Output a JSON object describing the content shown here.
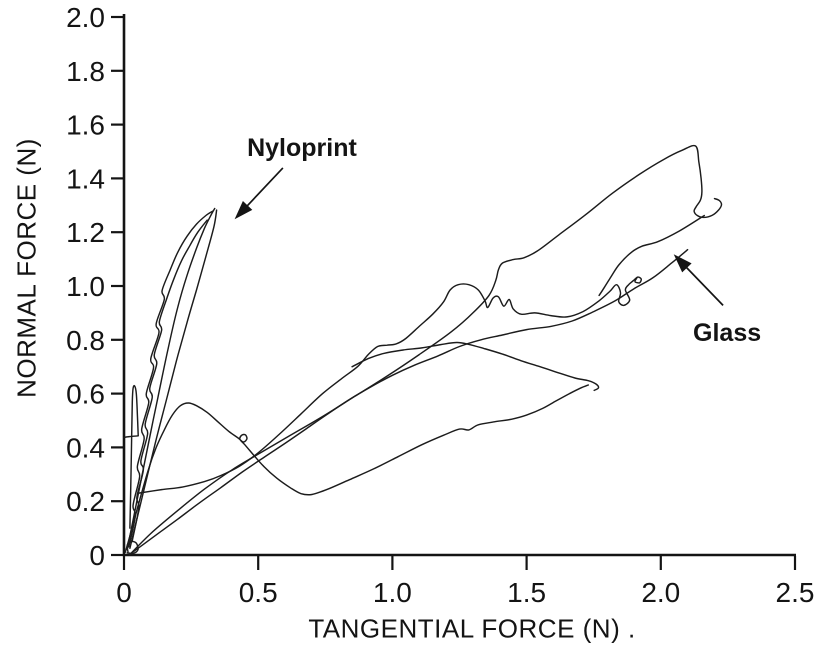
{
  "figure": {
    "background": "#ffffff",
    "line_color": "#1c1c1c",
    "axis_color": "#141414"
  },
  "chart_data": {
    "type": "line",
    "title": "",
    "xlabel": "TANGENTIAL FORCE (N) .",
    "ylabel": "NORMAL FORCE (N)",
    "xlim": [
      0,
      2.5
    ],
    "ylim": [
      0,
      2.0
    ],
    "grid": false,
    "legend_position": "none",
    "x_ticks": [
      {
        "value": 0.0,
        "label": "0"
      },
      {
        "value": 0.5,
        "label": "0.5"
      },
      {
        "value": 1.0,
        "label": "1.0"
      },
      {
        "value": 1.5,
        "label": "1.5"
      },
      {
        "value": 2.0,
        "label": "2.0"
      },
      {
        "value": 2.5,
        "label": "2.5"
      }
    ],
    "y_ticks": [
      {
        "value": 0.0,
        "label": "0"
      },
      {
        "value": 0.2,
        "label": "0.2"
      },
      {
        "value": 0.4,
        "label": "0.4"
      },
      {
        "value": 0.6,
        "label": "0.6"
      },
      {
        "value": 0.8,
        "label": "0.8"
      },
      {
        "value": 1.0,
        "label": "1.0"
      },
      {
        "value": 1.2,
        "label": "1.2"
      },
      {
        "value": 1.4,
        "label": "1.4"
      },
      {
        "value": 1.6,
        "label": "1.6"
      },
      {
        "value": 1.8,
        "label": "1.8"
      },
      {
        "value": 2.0,
        "label": "2.0"
      }
    ],
    "annotations": [
      {
        "label": "Nyloprint",
        "label_pos": [
          0.663,
          1.517
        ],
        "arrow_from": [
          0.592,
          1.439
        ],
        "arrow_to": [
          0.412,
          1.248
        ]
      },
      {
        "label": "Glass",
        "label_pos": [
          2.247,
          0.829
        ],
        "arrow_from": [
          2.232,
          0.928
        ],
        "arrow_to": [
          2.048,
          1.118
        ]
      }
    ],
    "series": [
      {
        "name": "glass-load-peak-drop",
        "group": "glass",
        "points": [
          [
            0.02,
            0.0
          ],
          [
            0.1,
            0.08
          ],
          [
            0.2,
            0.165
          ],
          [
            0.3,
            0.245
          ],
          [
            0.4,
            0.315
          ],
          [
            0.5,
            0.375
          ],
          [
            0.62,
            0.445
          ],
          [
            0.74,
            0.515
          ],
          [
            0.86,
            0.59
          ],
          [
            0.98,
            0.665
          ],
          [
            1.1,
            0.745
          ],
          [
            1.22,
            0.83
          ],
          [
            1.3,
            0.9
          ],
          [
            1.36,
            0.965
          ],
          [
            1.385,
            1.02
          ],
          [
            1.395,
            1.06
          ],
          [
            1.41,
            1.085
          ],
          [
            1.45,
            1.098
          ],
          [
            1.49,
            1.105
          ],
          [
            1.54,
            1.13
          ],
          [
            1.62,
            1.19
          ],
          [
            1.72,
            1.265
          ],
          [
            1.82,
            1.345
          ],
          [
            1.92,
            1.415
          ],
          [
            2.01,
            1.47
          ],
          [
            2.08,
            1.505
          ],
          [
            2.13,
            1.52
          ],
          [
            2.142,
            1.46
          ],
          [
            2.15,
            1.4
          ],
          [
            2.153,
            1.35
          ],
          [
            2.148,
            1.32
          ],
          [
            2.132,
            1.295
          ],
          [
            2.124,
            1.278
          ],
          [
            2.136,
            1.262
          ],
          [
            2.16,
            1.255
          ],
          [
            2.19,
            1.262
          ],
          [
            2.215,
            1.282
          ],
          [
            2.226,
            1.302
          ],
          [
            2.218,
            1.318
          ],
          [
            2.2,
            1.325
          ]
        ]
      },
      {
        "name": "glass-loop-inner-return",
        "group": "glass",
        "points": [
          [
            2.162,
            1.262
          ],
          [
            2.07,
            1.205
          ],
          [
            1.99,
            1.165
          ],
          [
            1.93,
            1.148
          ],
          [
            1.89,
            1.125
          ],
          [
            1.845,
            1.08
          ],
          [
            1.815,
            1.035
          ],
          [
            1.79,
            0.995
          ],
          [
            1.77,
            0.965
          ]
        ]
      },
      {
        "name": "glass-unload-diagonal",
        "group": "glass",
        "points": [
          [
            2.1,
            1.135
          ],
          [
            2.04,
            1.085
          ],
          [
            1.97,
            1.03
          ],
          [
            1.9,
            0.99
          ],
          [
            1.83,
            0.945
          ],
          [
            1.75,
            0.905
          ],
          [
            1.67,
            0.87
          ],
          [
            1.59,
            0.85
          ],
          [
            1.5,
            0.838
          ],
          [
            1.41,
            0.818
          ],
          [
            1.33,
            0.8
          ],
          [
            1.25,
            0.775
          ],
          [
            1.17,
            0.74
          ],
          [
            1.08,
            0.705
          ],
          [
            1.0,
            0.668
          ],
          [
            0.92,
            0.625
          ],
          [
            0.84,
            0.578
          ],
          [
            0.76,
            0.525
          ],
          [
            0.68,
            0.47
          ],
          [
            0.6,
            0.415
          ],
          [
            0.52,
            0.362
          ],
          [
            0.44,
            0.308
          ],
          [
            0.36,
            0.25
          ],
          [
            0.28,
            0.193
          ],
          [
            0.2,
            0.133
          ],
          [
            0.13,
            0.082
          ],
          [
            0.07,
            0.038
          ],
          [
            0.025,
            0.005
          ]
        ]
      },
      {
        "name": "glass-cycle2-load-wiggle",
        "group": "glass",
        "points": [
          [
            0.055,
            0.23
          ],
          [
            0.14,
            0.243
          ],
          [
            0.22,
            0.253
          ],
          [
            0.3,
            0.273
          ],
          [
            0.36,
            0.295
          ],
          [
            0.43,
            0.33
          ],
          [
            0.5,
            0.38
          ],
          [
            0.58,
            0.45
          ],
          [
            0.66,
            0.525
          ],
          [
            0.74,
            0.6
          ],
          [
            0.81,
            0.655
          ],
          [
            0.87,
            0.7
          ],
          [
            0.91,
            0.745
          ],
          [
            0.945,
            0.775
          ],
          [
            0.98,
            0.78
          ],
          [
            1.015,
            0.785
          ],
          [
            1.05,
            0.805
          ],
          [
            1.1,
            0.85
          ],
          [
            1.15,
            0.895
          ],
          [
            1.19,
            0.94
          ],
          [
            1.215,
            0.985
          ],
          [
            1.245,
            1.005
          ],
          [
            1.285,
            1.005
          ],
          [
            1.32,
            0.985
          ],
          [
            1.345,
            0.945
          ],
          [
            1.355,
            0.92
          ],
          [
            1.375,
            0.955
          ],
          [
            1.395,
            0.96
          ],
          [
            1.415,
            0.925
          ],
          [
            1.435,
            0.95
          ],
          [
            1.45,
            0.915
          ],
          [
            1.48,
            0.895
          ],
          [
            1.53,
            0.9
          ],
          [
            1.59,
            0.89
          ],
          [
            1.65,
            0.885
          ],
          [
            1.71,
            0.905
          ],
          [
            1.77,
            0.945
          ],
          [
            1.81,
            0.98
          ],
          [
            1.835,
            1.005
          ],
          [
            1.85,
            0.975
          ],
          [
            1.843,
            0.942
          ],
          [
            1.862,
            0.928
          ],
          [
            1.884,
            0.948
          ],
          [
            1.868,
            0.985
          ],
          [
            1.88,
            1.005
          ],
          [
            1.898,
            1.02
          ],
          [
            1.914,
            1.033
          ],
          [
            1.927,
            1.026
          ],
          [
            1.921,
            1.012
          ],
          [
            1.904,
            1.016
          ],
          [
            1.911,
            1.03
          ]
        ]
      },
      {
        "name": "glass-return-flat-top",
        "group": "glass",
        "points": [
          [
            0.85,
            0.7
          ],
          [
            0.91,
            0.73
          ],
          [
            0.97,
            0.75
          ],
          [
            1.04,
            0.762
          ],
          [
            1.11,
            0.77
          ],
          [
            1.18,
            0.782
          ],
          [
            1.24,
            0.79
          ],
          [
            1.285,
            0.783
          ],
          [
            1.34,
            0.768
          ],
          [
            1.41,
            0.747
          ],
          [
            1.48,
            0.722
          ],
          [
            1.55,
            0.7
          ],
          [
            1.62,
            0.677
          ],
          [
            1.68,
            0.658
          ],
          [
            1.73,
            0.648
          ],
          [
            1.758,
            0.636
          ],
          [
            1.768,
            0.622
          ],
          [
            1.752,
            0.612
          ]
        ]
      },
      {
        "name": "hill-loop-return",
        "group": "glass",
        "points": [
          [
            0.005,
            0.01
          ],
          [
            0.03,
            0.1
          ],
          [
            0.06,
            0.21
          ],
          [
            0.09,
            0.315
          ],
          [
            0.12,
            0.4
          ],
          [
            0.15,
            0.465
          ],
          [
            0.18,
            0.52
          ],
          [
            0.21,
            0.555
          ],
          [
            0.24,
            0.565
          ],
          [
            0.27,
            0.555
          ],
          [
            0.31,
            0.53
          ],
          [
            0.35,
            0.495
          ],
          [
            0.39,
            0.46
          ],
          [
            0.425,
            0.435
          ],
          [
            0.445,
            0.42
          ],
          [
            0.458,
            0.432
          ],
          [
            0.452,
            0.447
          ],
          [
            0.438,
            0.445
          ],
          [
            0.432,
            0.43
          ],
          [
            0.45,
            0.41
          ],
          [
            0.48,
            0.375
          ],
          [
            0.52,
            0.33
          ],
          [
            0.57,
            0.285
          ],
          [
            0.62,
            0.25
          ],
          [
            0.66,
            0.228
          ],
          [
            0.7,
            0.225
          ],
          [
            0.76,
            0.245
          ],
          [
            0.84,
            0.28
          ],
          [
            0.93,
            0.32
          ],
          [
            1.02,
            0.365
          ],
          [
            1.11,
            0.41
          ],
          [
            1.19,
            0.445
          ],
          [
            1.25,
            0.468
          ],
          [
            1.285,
            0.465
          ],
          [
            1.32,
            0.484
          ],
          [
            1.38,
            0.495
          ],
          [
            1.445,
            0.505
          ],
          [
            1.5,
            0.52
          ],
          [
            1.56,
            0.545
          ],
          [
            1.61,
            0.573
          ],
          [
            1.66,
            0.6
          ],
          [
            1.7,
            0.62
          ],
          [
            1.73,
            0.632
          ]
        ]
      },
      {
        "name": "near-axis-spike",
        "group": "glass",
        "points": [
          [
            0.022,
            0.1
          ],
          [
            0.026,
            0.3
          ],
          [
            0.029,
            0.47
          ],
          [
            0.031,
            0.57
          ],
          [
            0.034,
            0.62
          ],
          [
            0.04,
            0.628
          ],
          [
            0.046,
            0.6
          ],
          [
            0.05,
            0.52
          ],
          [
            0.053,
            0.445
          ]
        ]
      },
      {
        "name": "axis-shelf",
        "group": "glass",
        "points": [
          [
            0.0,
            0.437
          ],
          [
            0.02,
            0.44
          ],
          [
            0.053,
            0.443
          ]
        ]
      },
      {
        "name": "nyloprint-strand-up",
        "group": "nyloprint",
        "points": [
          [
            0.012,
            0.02
          ],
          [
            0.05,
            0.21
          ],
          [
            0.09,
            0.41
          ],
          [
            0.125,
            0.58
          ],
          [
            0.165,
            0.77
          ],
          [
            0.2,
            0.92
          ],
          [
            0.235,
            1.04
          ],
          [
            0.27,
            1.14
          ],
          [
            0.3,
            1.215
          ],
          [
            0.325,
            1.265
          ],
          [
            0.338,
            1.288
          ]
        ]
      },
      {
        "name": "nyloprint-strand-down",
        "group": "nyloprint",
        "points": [
          [
            0.345,
            1.282
          ],
          [
            0.335,
            1.22
          ],
          [
            0.305,
            1.11
          ],
          [
            0.27,
            0.985
          ],
          [
            0.235,
            0.865
          ],
          [
            0.195,
            0.72
          ],
          [
            0.155,
            0.565
          ],
          [
            0.115,
            0.41
          ],
          [
            0.075,
            0.245
          ],
          [
            0.04,
            0.1
          ],
          [
            0.022,
            0.025
          ]
        ]
      },
      {
        "name": "nyloprint-strand-jagged-1",
        "group": "nyloprint",
        "points": [
          [
            0.018,
            0.03
          ],
          [
            0.042,
            0.145
          ],
          [
            0.034,
            0.185
          ],
          [
            0.058,
            0.29
          ],
          [
            0.05,
            0.33
          ],
          [
            0.075,
            0.43
          ],
          [
            0.066,
            0.468
          ],
          [
            0.092,
            0.565
          ],
          [
            0.083,
            0.6
          ],
          [
            0.11,
            0.695
          ],
          [
            0.1,
            0.73
          ],
          [
            0.13,
            0.825
          ],
          [
            0.12,
            0.86
          ],
          [
            0.15,
            0.95
          ],
          [
            0.142,
            0.983
          ],
          [
            0.172,
            1.06
          ],
          [
            0.2,
            1.125
          ],
          [
            0.235,
            1.185
          ],
          [
            0.27,
            1.23
          ],
          [
            0.305,
            1.262
          ],
          [
            0.33,
            1.278
          ]
        ]
      },
      {
        "name": "nyloprint-strand-jagged-2",
        "group": "nyloprint",
        "points": [
          [
            0.03,
            0.05
          ],
          [
            0.055,
            0.175
          ],
          [
            0.048,
            0.215
          ],
          [
            0.072,
            0.315
          ],
          [
            0.063,
            0.35
          ],
          [
            0.088,
            0.45
          ],
          [
            0.079,
            0.487
          ],
          [
            0.105,
            0.585
          ],
          [
            0.096,
            0.62
          ],
          [
            0.122,
            0.71
          ],
          [
            0.113,
            0.745
          ],
          [
            0.14,
            0.835
          ],
          [
            0.132,
            0.868
          ],
          [
            0.16,
            0.955
          ],
          [
            0.185,
            1.025
          ],
          [
            0.215,
            1.095
          ],
          [
            0.245,
            1.15
          ],
          [
            0.275,
            1.2
          ],
          [
            0.31,
            1.245
          ]
        ]
      },
      {
        "name": "origin-loop",
        "group": "nyloprint",
        "points": [
          [
            0.012,
            0.008
          ],
          [
            0.035,
            0.006
          ],
          [
            0.052,
            0.02
          ],
          [
            0.045,
            0.045
          ],
          [
            0.025,
            0.05
          ],
          [
            0.012,
            0.035
          ],
          [
            0.015,
            0.012
          ]
        ]
      }
    ]
  }
}
